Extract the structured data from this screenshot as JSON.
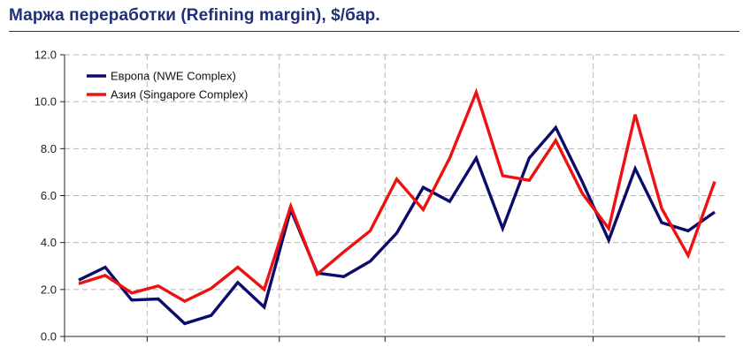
{
  "title": "Маржа переработки (Refining margin), $/бар.",
  "chart_data": {
    "type": "line",
    "ylim": [
      0,
      12
    ],
    "yticks": [
      "0.0",
      "2.0",
      "4.0",
      "6.0",
      "8.0",
      "10.0",
      "12.0"
    ],
    "grid": true,
    "legend_position": "top-left",
    "series": [
      {
        "name": "Европа (NWE Complex)",
        "color": "#0b0b6b",
        "values": [
          2.4,
          2.95,
          1.55,
          1.6,
          0.55,
          0.9,
          2.3,
          1.25,
          5.4,
          2.7,
          2.55,
          3.2,
          4.4,
          6.35,
          5.75,
          7.6,
          4.6,
          7.6,
          8.9,
          6.6,
          4.1,
          7.15,
          4.85,
          4.5,
          5.3
        ]
      },
      {
        "name": "Азия (Singapore Complex)",
        "color": "#ee1111",
        "values": [
          2.25,
          2.6,
          1.85,
          2.15,
          1.5,
          2.05,
          2.95,
          2.0,
          5.55,
          2.65,
          3.6,
          4.5,
          6.7,
          5.4,
          7.6,
          10.4,
          6.85,
          6.65,
          8.35,
          6.1,
          4.6,
          9.45,
          5.45,
          3.45,
          6.6
        ]
      }
    ]
  }
}
